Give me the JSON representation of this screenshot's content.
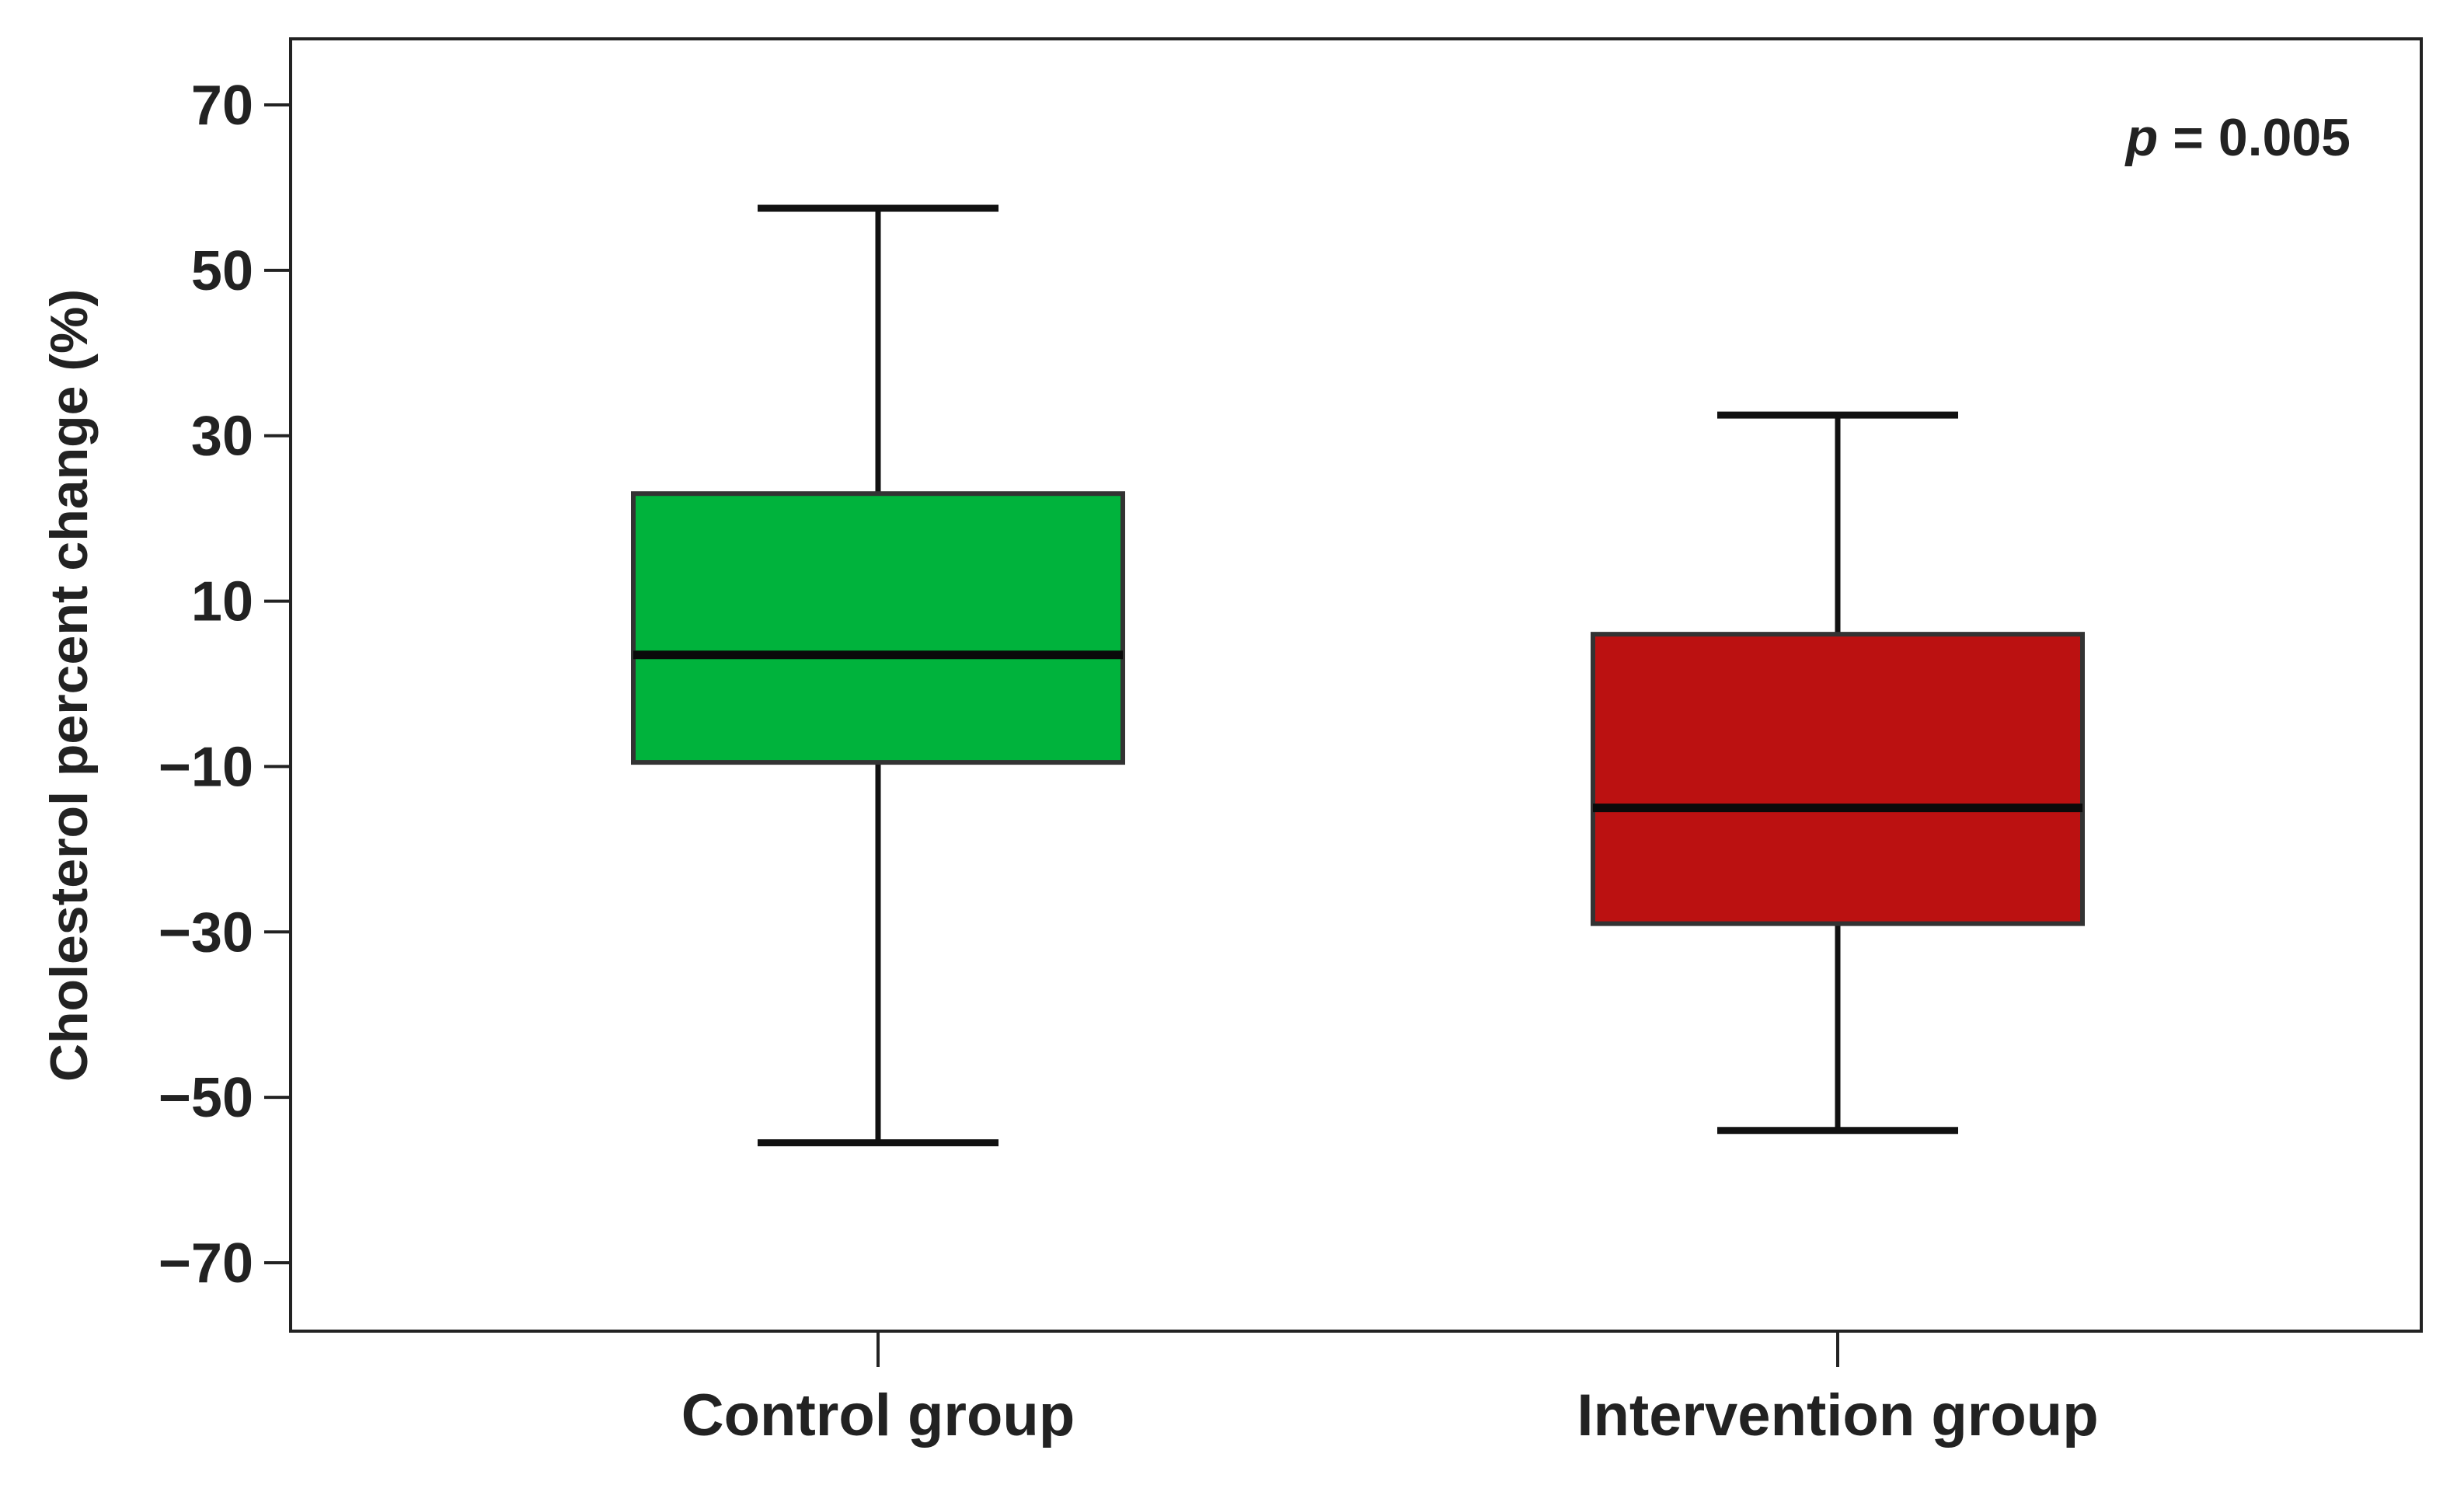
{
  "chart_data": {
    "type": "box",
    "title": "",
    "xlabel": "",
    "ylabel": "Cholesterol percent change (%)",
    "ylim": [
      -77,
      78
    ],
    "yticks": [
      70,
      50,
      30,
      10,
      -10,
      -30,
      -50,
      -70
    ],
    "ytick_labels": [
      "70",
      "50",
      "30",
      "10",
      "−10",
      "−30",
      "−50",
      "−70"
    ],
    "categories": [
      "Control group",
      "Intervention group"
    ],
    "boxes": [
      {
        "category": "Control group",
        "whisker_high": 57.5,
        "q3": 23.0,
        "median": 3.5,
        "q1": -9.5,
        "whisker_low": -55.5,
        "color": "#00b33c"
      },
      {
        "category": "Intervention group",
        "whisker_high": 32.5,
        "q3": 6.0,
        "median": -15.0,
        "q1": -29.0,
        "whisker_low": -54.0,
        "color": "#bb1111"
      }
    ],
    "annotation": {
      "italic_part": "p",
      "rest": " = 0.005"
    },
    "grid": false,
    "legend": "none"
  }
}
